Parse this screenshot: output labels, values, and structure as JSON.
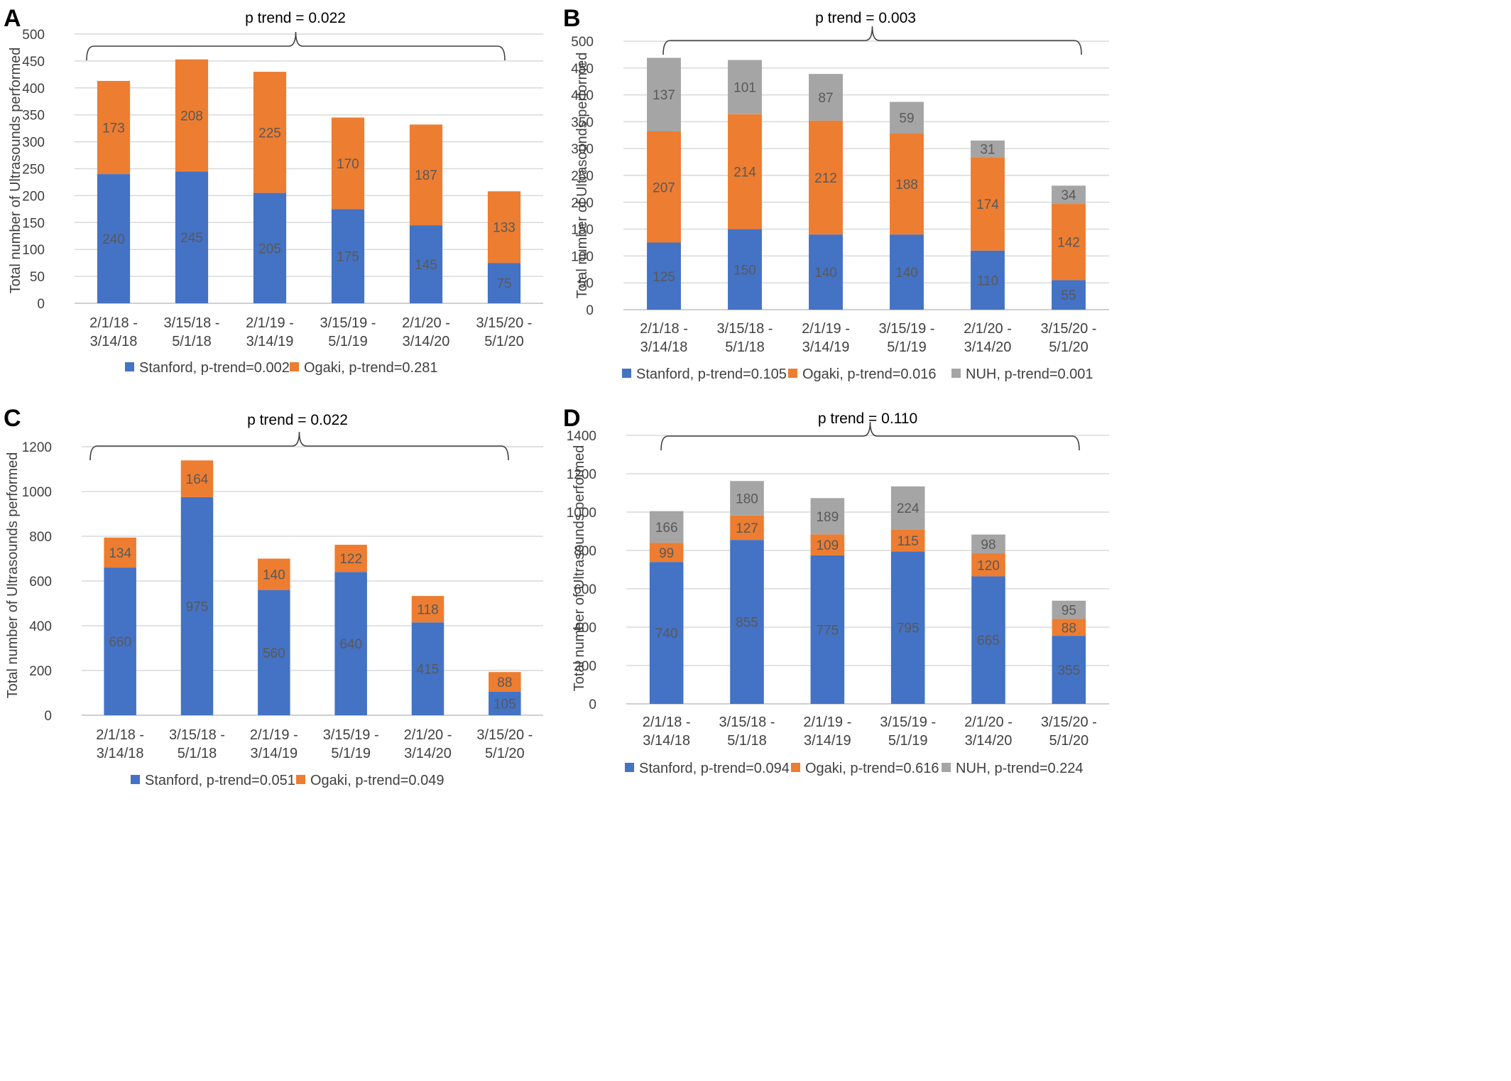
{
  "colors": {
    "stanford": "#4472C4",
    "ogaki": "#ED7D31",
    "nuh": "#A5A5A5",
    "grid": "#D9D9D9",
    "text": "#404040",
    "label": "#595959"
  },
  "chart_data": [
    {
      "panel_letter": "A",
      "type": "bar",
      "stacked": true,
      "trend_label": "p trend = 0.022",
      "ylabel": "Total number of Ultrasounds performed",
      "ylim": [
        0,
        500
      ],
      "ytick_step": 50,
      "grid": true,
      "legend_position": "bottom",
      "categories": [
        [
          "2/1/18 -",
          "3/14/18"
        ],
        [
          "3/15/18 -",
          "5/1/18"
        ],
        [
          "2/1/19 -",
          "3/14/19"
        ],
        [
          "3/15/19 -",
          "5/1/19"
        ],
        [
          "2/1/20 -",
          "3/14/20"
        ],
        [
          "3/15/20 -",
          "5/1/20"
        ]
      ],
      "series": [
        {
          "name": "Stanford, p-trend=0.002",
          "color_key": "stanford",
          "values": [
            240,
            245,
            205,
            175,
            145,
            75
          ]
        },
        {
          "name": "Ogaki, p-trend=0.281",
          "color_key": "ogaki",
          "values": [
            173,
            208,
            225,
            170,
            187,
            133
          ]
        }
      ]
    },
    {
      "panel_letter": "B",
      "type": "bar",
      "stacked": true,
      "trend_label": "p trend = 0.003",
      "ylabel": "Total number of Ultrasounds performed",
      "ylim": [
        0,
        500
      ],
      "ytick_step": 50,
      "grid": true,
      "legend_position": "bottom",
      "categories": [
        [
          "2/1/18 -",
          "3/14/18"
        ],
        [
          "3/15/18 -",
          "5/1/18"
        ],
        [
          "2/1/19 -",
          "3/14/19"
        ],
        [
          "3/15/19 -",
          "5/1/19"
        ],
        [
          "2/1/20 -",
          "3/14/20"
        ],
        [
          "3/15/20 -",
          "5/1/20"
        ]
      ],
      "series": [
        {
          "name": "Stanford, p-trend=0.105",
          "color_key": "stanford",
          "values": [
            125,
            150,
            140,
            140,
            110,
            55
          ]
        },
        {
          "name": "Ogaki, p-trend=0.016",
          "color_key": "ogaki",
          "values": [
            207,
            214,
            212,
            188,
            174,
            142
          ]
        },
        {
          "name": "NUH, p-trend=0.001",
          "color_key": "nuh",
          "values": [
            137,
            101,
            87,
            59,
            31,
            34
          ]
        }
      ]
    },
    {
      "panel_letter": "C",
      "type": "bar",
      "stacked": true,
      "trend_label": "p trend = 0.022",
      "ylabel": "Total number of Ultrasounds performed",
      "ylim": [
        0,
        1200
      ],
      "ytick_step": 200,
      "grid": true,
      "legend_position": "bottom",
      "categories": [
        [
          "2/1/18 -",
          "3/14/18"
        ],
        [
          "3/15/18 -",
          "5/1/18"
        ],
        [
          "2/1/19 -",
          "3/14/19"
        ],
        [
          "3/15/19 -",
          "5/1/19"
        ],
        [
          "2/1/20 -",
          "3/14/20"
        ],
        [
          "3/15/20 -",
          "5/1/20"
        ]
      ],
      "series": [
        {
          "name": "Stanford, p-trend=0.051",
          "color_key": "stanford",
          "values": [
            660,
            975,
            560,
            640,
            415,
            105
          ]
        },
        {
          "name": "Ogaki, p-trend=0.049",
          "color_key": "ogaki",
          "values": [
            134,
            164,
            140,
            122,
            118,
            88
          ]
        }
      ]
    },
    {
      "panel_letter": "D",
      "type": "bar",
      "stacked": true,
      "trend_label": "p trend = 0.110",
      "ylabel": "Total number of Ultrasounds performed",
      "ylim": [
        0,
        1400
      ],
      "ytick_step": 200,
      "grid": true,
      "legend_position": "bottom",
      "categories": [
        [
          "2/1/18 -",
          "3/14/18"
        ],
        [
          "3/15/18 -",
          "5/1/18"
        ],
        [
          "2/1/19 -",
          "3/14/19"
        ],
        [
          "3/15/19 -",
          "5/1/19"
        ],
        [
          "2/1/20 -",
          "3/14/20"
        ],
        [
          "3/15/20 -",
          "5/1/20"
        ]
      ],
      "series": [
        {
          "name": "Stanford, p-trend=0.094",
          "color_key": "stanford",
          "values": [
            740,
            855,
            775,
            795,
            665,
            355
          ]
        },
        {
          "name": "Ogaki, p-trend=0.616",
          "color_key": "ogaki",
          "values": [
            99,
            127,
            109,
            115,
            120,
            88
          ]
        },
        {
          "name": "NUH, p-trend=0.224",
          "color_key": "nuh",
          "values": [
            166,
            180,
            189,
            224,
            98,
            95
          ]
        }
      ]
    }
  ]
}
